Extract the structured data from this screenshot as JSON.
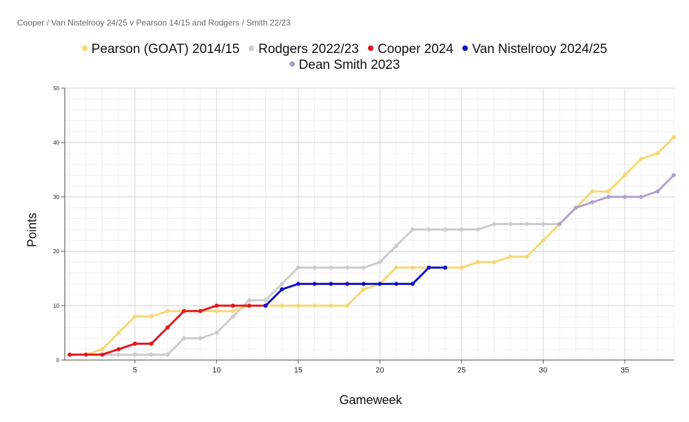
{
  "title": "Cooper / Van Nistelrooy 24/25 v Pearson 14/15 and Rodgers / Smith 22/23",
  "chart_data": {
    "type": "line",
    "xlabel": "Gameweek",
    "ylabel": "Points",
    "xlim": [
      0.7,
      38
    ],
    "ylim": [
      0,
      50
    ],
    "x_ticks": [
      5,
      10,
      15,
      20,
      25,
      30,
      35
    ],
    "y_ticks": [
      0,
      10,
      20,
      30,
      40,
      50
    ],
    "grid": true,
    "legend_position": "top-center",
    "series": [
      {
        "name": "Pearson (GOAT) 2014/15",
        "color": "#f7d774",
        "x": [
          1,
          2,
          3,
          4,
          5,
          6,
          7,
          8,
          9,
          10,
          11,
          12,
          13,
          14,
          15,
          16,
          17,
          18,
          19,
          20,
          21,
          22,
          23,
          24,
          25,
          26,
          27,
          28,
          29,
          30,
          31,
          32,
          33,
          34,
          35,
          36,
          37,
          38
        ],
        "values": [
          1,
          1,
          2,
          5,
          8,
          8,
          9,
          9,
          9,
          9,
          9,
          10,
          10,
          10,
          10,
          10,
          10,
          10,
          13,
          14,
          17,
          17,
          17,
          17,
          17,
          18,
          18,
          19,
          19,
          22,
          25,
          28,
          31,
          31,
          34,
          37,
          38,
          41
        ]
      },
      {
        "name": "Rodgers 2022/23",
        "color": "#cccccc",
        "x": [
          1,
          2,
          3,
          4,
          5,
          6,
          7,
          8,
          9,
          10,
          11,
          12,
          13,
          14,
          15,
          16,
          17,
          18,
          19,
          20,
          21,
          22,
          23,
          24,
          25,
          26,
          27,
          28,
          29,
          30,
          31
        ],
        "values": [
          1,
          1,
          1,
          1,
          1,
          1,
          1,
          4,
          4,
          5,
          8,
          11,
          11,
          14,
          17,
          17,
          17,
          17,
          17,
          18,
          21,
          24,
          24,
          24,
          24,
          24,
          25,
          25,
          25,
          25,
          25
        ]
      },
      {
        "name": "Cooper 2024",
        "color": "#e8141b",
        "x": [
          1,
          2,
          3,
          4,
          5,
          6,
          7,
          8,
          9,
          10,
          11,
          12,
          13
        ],
        "values": [
          1,
          1,
          1,
          2,
          3,
          3,
          6,
          9,
          9,
          10,
          10,
          10,
          10
        ]
      },
      {
        "name": "Van Nistelrooy 2024/25",
        "color": "#1010cc",
        "x": [
          13,
          14,
          15,
          16,
          17,
          18,
          19,
          20,
          21,
          22,
          23,
          24
        ],
        "values": [
          10,
          13,
          14,
          14,
          14,
          14,
          14,
          14,
          14,
          14,
          17,
          17
        ]
      },
      {
        "name": "Dean Smith 2023",
        "color": "#b0a2cf",
        "x": [
          31,
          32,
          33,
          34,
          35,
          36,
          37,
          38
        ],
        "values": [
          25,
          28,
          29,
          30,
          30,
          30,
          31,
          34
        ]
      }
    ]
  }
}
